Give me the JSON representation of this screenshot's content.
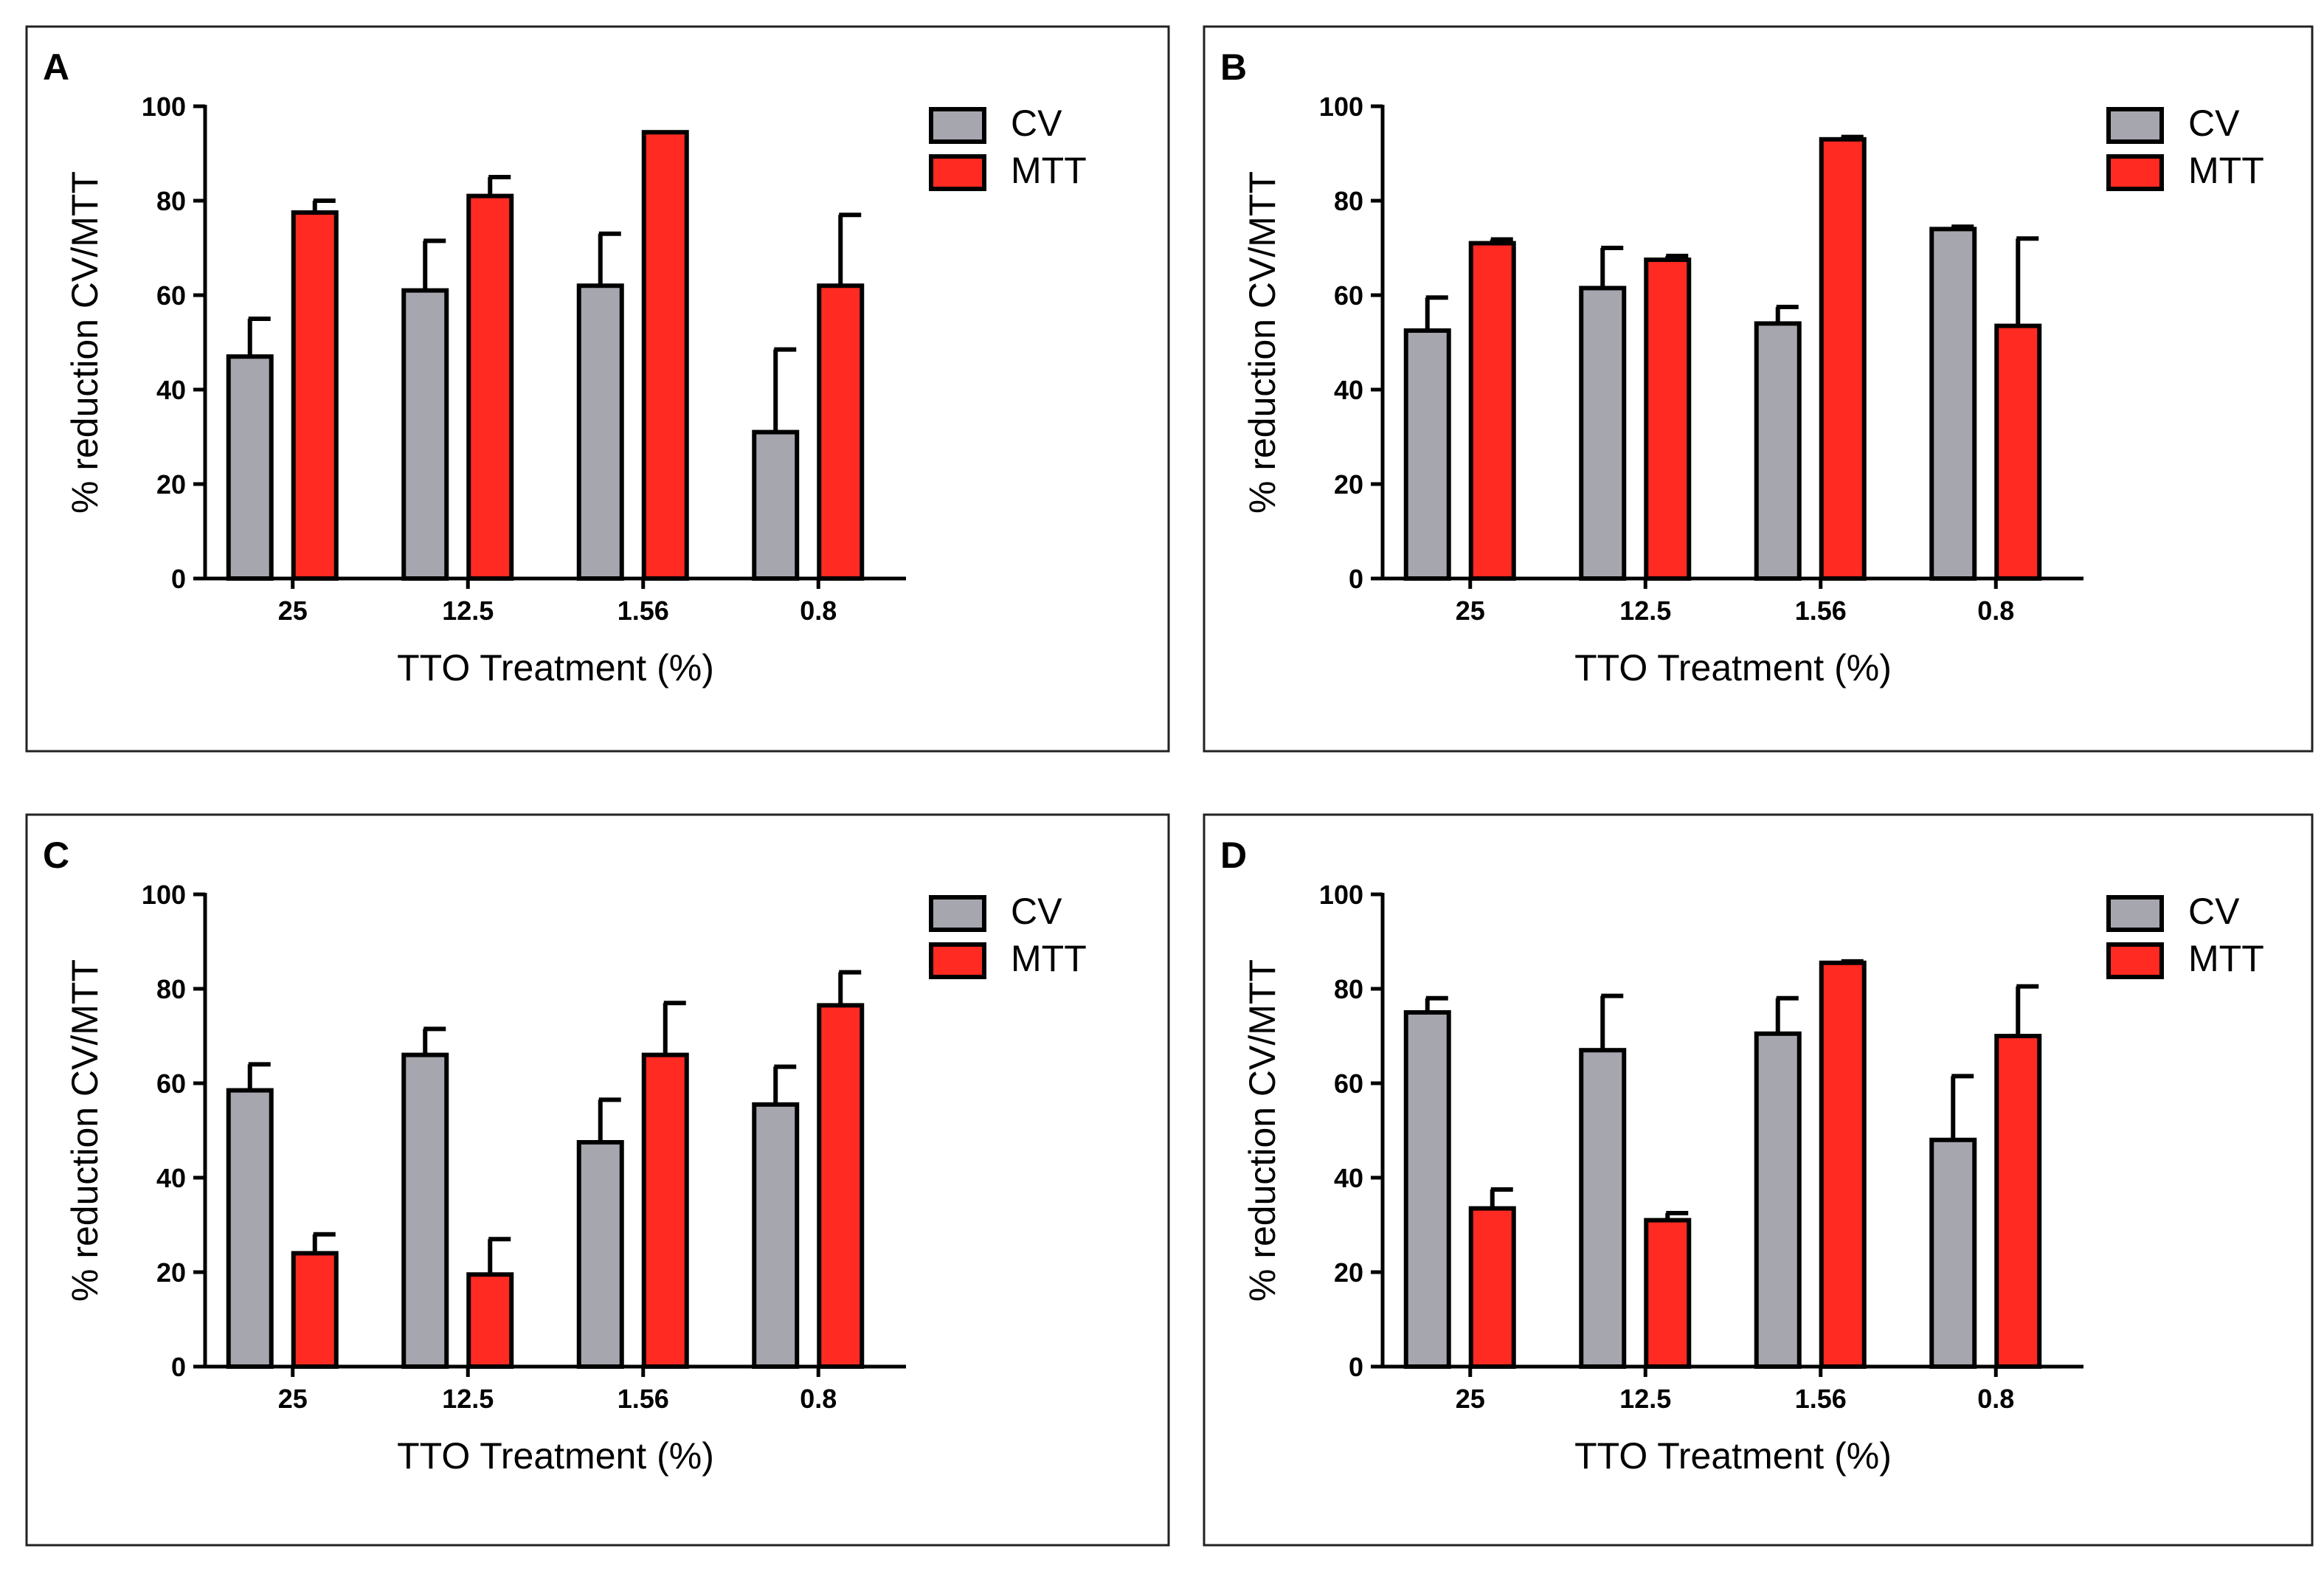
{
  "colors": {
    "cv": "#a6a6ae",
    "mtt": "#ff2a22",
    "stroke": "#000000",
    "frame": "#222222"
  },
  "chart_data": [
    {
      "panel": "A",
      "type": "bar",
      "categories": [
        "25",
        "12.5",
        "1.56",
        "0.8"
      ],
      "series": [
        {
          "name": "CV",
          "values": [
            47,
            61,
            62,
            31
          ],
          "errors": [
            8,
            10.5,
            11,
            17.5
          ]
        },
        {
          "name": "MTT",
          "values": [
            77.5,
            81,
            94.5,
            62
          ],
          "errors": [
            2.5,
            4,
            0,
            15
          ]
        }
      ],
      "title": "",
      "xlabel": "TTO Treatment (%)",
      "ylabel": "% reduction CV/MTT",
      "ylim": [
        0,
        100
      ],
      "yticks": [
        "0",
        "20",
        "40",
        "60",
        "80",
        "100"
      ],
      "legend": "top-right",
      "grid": false
    },
    {
      "panel": "B",
      "type": "bar",
      "categories": [
        "25",
        "12.5",
        "1.56",
        "0.8"
      ],
      "series": [
        {
          "name": "CV",
          "values": [
            52.5,
            61.5,
            54,
            74
          ],
          "errors": [
            7,
            8.5,
            3.5,
            0.5
          ]
        },
        {
          "name": "MTT",
          "values": [
            71,
            67.5,
            93,
            53.5
          ],
          "errors": [
            0.8,
            0.8,
            0.5,
            18.5
          ]
        }
      ],
      "title": "",
      "xlabel": "TTO Treatment (%)",
      "ylabel": "% reduction CV/MTT",
      "ylim": [
        0,
        100
      ],
      "yticks": [
        "0",
        "20",
        "40",
        "60",
        "80",
        "100"
      ],
      "legend": "top-right",
      "grid": false
    },
    {
      "panel": "C",
      "type": "bar",
      "categories": [
        "25",
        "12.5",
        "1.56",
        "0.8"
      ],
      "series": [
        {
          "name": "CV",
          "values": [
            58.5,
            66,
            47.5,
            55.5
          ],
          "errors": [
            5.5,
            5.5,
            9,
            8
          ]
        },
        {
          "name": "MTT",
          "values": [
            24,
            19.5,
            66,
            76.5
          ],
          "errors": [
            4,
            7.5,
            11,
            7
          ]
        }
      ],
      "title": "",
      "xlabel": "TTO Treatment (%)",
      "ylabel": "% reduction CV/MTT",
      "ylim": [
        0,
        100
      ],
      "yticks": [
        "0",
        "20",
        "40",
        "60",
        "80",
        "100"
      ],
      "legend": "top-right",
      "grid": false
    },
    {
      "panel": "D",
      "type": "bar",
      "categories": [
        "25",
        "12.5",
        "1.56",
        "0.8"
      ],
      "series": [
        {
          "name": "CV",
          "values": [
            75,
            67,
            70.5,
            48
          ],
          "errors": [
            3,
            11.5,
            7.5,
            13.5
          ]
        },
        {
          "name": "MTT",
          "values": [
            33.5,
            31,
            85.5,
            70
          ],
          "errors": [
            4,
            1.5,
            0.3,
            10.5
          ]
        }
      ],
      "title": "",
      "xlabel": "TTO Treatment (%)",
      "ylabel": "% reduction CV/MTT",
      "ylim": [
        0,
        100
      ],
      "yticks": [
        "0",
        "20",
        "40",
        "60",
        "80",
        "100"
      ],
      "legend": "top-right",
      "grid": false
    }
  ]
}
